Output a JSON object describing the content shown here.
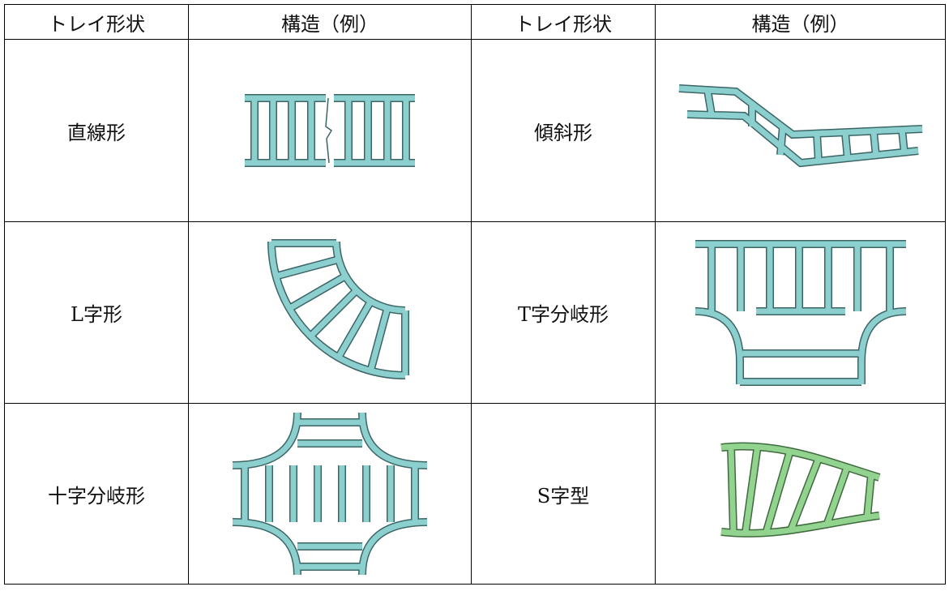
{
  "table": {
    "header": [
      "トレイ形状",
      "構造（例）",
      "トレイ形状",
      "構造（例）"
    ],
    "rows": [
      [
        "直線形",
        "傾斜形"
      ],
      [
        "L字形",
        "T字分岐形"
      ],
      [
        "十字分岐形",
        "S字型"
      ]
    ]
  }
}
